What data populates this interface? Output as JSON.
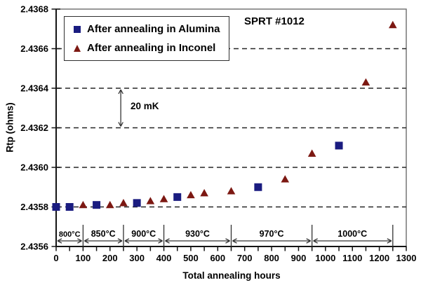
{
  "chart_data": {
    "type": "scatter",
    "title": "SPRT #1012",
    "xlabel": "Total annealing hours",
    "ylabel": "Rtp (ohms)",
    "xlim": [
      0,
      1300
    ],
    "ylim": [
      2.4356,
      2.4368
    ],
    "x_tick_step": 100,
    "x_minor_tick_step": 50,
    "y_ticks": [
      2.4356,
      2.4358,
      2.436,
      2.4362,
      2.4364,
      2.4366,
      2.4368
    ],
    "y_tick_decimals": 4,
    "grid": "horizontal-dashed",
    "legend_position": "top-left",
    "series": [
      {
        "name": "After annealing in Alumina",
        "marker": "square",
        "color": "#1a1c80",
        "points": [
          [
            0,
            2.4358
          ],
          [
            50,
            2.4358
          ],
          [
            150,
            2.43581
          ],
          [
            300,
            2.43582
          ],
          [
            450,
            2.43585
          ],
          [
            750,
            2.4359
          ],
          [
            1050,
            2.43611
          ]
        ]
      },
      {
        "name": "After annealing in Inconel",
        "marker": "triangle",
        "color": "#7c1812",
        "points": [
          [
            100,
            2.43581
          ],
          [
            200,
            2.43581
          ],
          [
            250,
            2.43582
          ],
          [
            350,
            2.43583
          ],
          [
            400,
            2.43584
          ],
          [
            500,
            2.43586
          ],
          [
            550,
            2.43587
          ],
          [
            650,
            2.43588
          ],
          [
            850,
            2.43594
          ],
          [
            950,
            2.43607
          ],
          [
            1150,
            2.43643
          ],
          [
            1250,
            2.43672
          ]
        ]
      }
    ],
    "annotations": {
      "span_arrow": {
        "label": "20 mK",
        "x": 240,
        "y_from": 2.4362,
        "y_to": 2.4364
      },
      "temperature_zones": [
        {
          "label": "800°C",
          "from": 0,
          "to": 100
        },
        {
          "label": "850°C",
          "from": 100,
          "to": 250
        },
        {
          "label": "900°C",
          "from": 250,
          "to": 400
        },
        {
          "label": "930°C",
          "from": 400,
          "to": 650
        },
        {
          "label": "970°C",
          "from": 650,
          "to": 950
        },
        {
          "label": "1000°C",
          "from": 950,
          "to": 1250
        }
      ]
    },
    "colors": {
      "axis": "#141414",
      "grid": "#262626",
      "plot_border": "#6b6b6b",
      "annotation": "#333333",
      "background": "#ffffff",
      "text": "#000000"
    }
  }
}
